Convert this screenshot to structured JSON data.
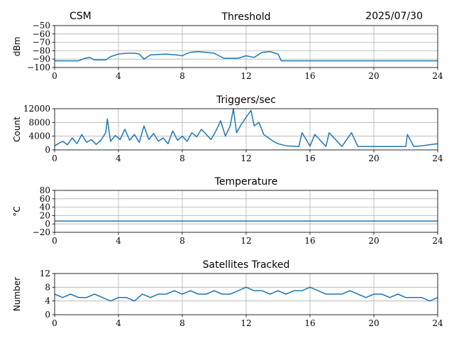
{
  "header": {
    "left_label": "CSM",
    "right_label": "2025/07/30"
  },
  "colors": {
    "series": "#1f77b4",
    "grid": "#b0b0b0",
    "axis": "#000000"
  },
  "chart_data": [
    {
      "id": "threshold",
      "type": "line",
      "title": "Threshold",
      "xlabel": "",
      "ylabel": "dBm",
      "xlim": [
        0,
        24
      ],
      "ylim": [
        -100,
        -50
      ],
      "xticks": [
        0,
        4,
        8,
        12,
        16,
        20,
        24
      ],
      "yticks": [
        -100,
        -90,
        -80,
        -70,
        -60,
        -50
      ],
      "ytick_labels": [
        "−100",
        "−90",
        "−80",
        "−70",
        "−60",
        "−50"
      ],
      "grid": true,
      "x": [
        0,
        1.5,
        1.9,
        2.2,
        2.5,
        3.2,
        3.5,
        4,
        4.5,
        5,
        5.3,
        5.6,
        6,
        7,
        7.6,
        8,
        8.2,
        8.5,
        9,
        9.5,
        10,
        10.3,
        10.6,
        11,
        11.5,
        12,
        12.5,
        13,
        13.5,
        14,
        14.2,
        16,
        20,
        24
      ],
      "y": [
        -92,
        -92,
        -89,
        -88,
        -91,
        -91,
        -87,
        -84,
        -83,
        -83,
        -84,
        -90,
        -85,
        -84,
        -85,
        -86,
        -84,
        -82,
        -81,
        -82,
        -83,
        -86,
        -89,
        -89,
        -89,
        -86,
        -88,
        -82,
        -81,
        -84,
        -92,
        -92,
        -92,
        -92
      ]
    },
    {
      "id": "triggers",
      "type": "line",
      "title": "Triggers/sec",
      "xlabel": "",
      "ylabel": "Count",
      "xlim": [
        0,
        24
      ],
      "ylim": [
        0,
        12000
      ],
      "xticks": [
        0,
        4,
        8,
        12,
        16,
        20,
        24
      ],
      "yticks": [
        0,
        4000,
        8000,
        12000
      ],
      "ytick_labels": [
        "0",
        "4000",
        "8000",
        "12000"
      ],
      "grid": true,
      "x": [
        0,
        0.5,
        0.8,
        1.1,
        1.4,
        1.7,
        2.0,
        2.3,
        2.6,
        2.9,
        3.2,
        3.3,
        3.5,
        3.8,
        4.1,
        4.4,
        4.7,
        5.0,
        5.3,
        5.6,
        5.9,
        6.2,
        6.5,
        6.8,
        7.1,
        7.4,
        7.7,
        8.0,
        8.3,
        8.6,
        8.9,
        9.2,
        9.5,
        9.8,
        10.1,
        10.4,
        10.7,
        11.0,
        11.2,
        11.4,
        11.7,
        12.0,
        12.3,
        12.5,
        12.8,
        13.1,
        13.4,
        13.7,
        14.0,
        14.5,
        15.3,
        15.5,
        16.0,
        16.3,
        17.0,
        17.2,
        18.0,
        18.6,
        19.0,
        20.0,
        21.0,
        22.0,
        22.1,
        22.5,
        23.0,
        23.5,
        24
      ],
      "y": [
        1200,
        2500,
        1500,
        3500,
        1800,
        4500,
        2200,
        3000,
        1600,
        2800,
        5000,
        9000,
        2500,
        4200,
        3000,
        6000,
        2800,
        4500,
        2200,
        7000,
        3000,
        4800,
        2500,
        3500,
        1800,
        5500,
        2800,
        4000,
        2500,
        5000,
        3800,
        6000,
        4500,
        3000,
        5500,
        8500,
        4000,
        7000,
        12000,
        5000,
        7500,
        9500,
        11500,
        7000,
        8000,
        4500,
        3500,
        2500,
        1800,
        1200,
        1000,
        5000,
        1100,
        4500,
        1000,
        5000,
        1000,
        5000,
        1000,
        1000,
        1000,
        1000,
        4500,
        1000,
        1200,
        1500,
        1800
      ]
    },
    {
      "id": "temperature",
      "type": "line",
      "title": "Temperature",
      "xlabel": "",
      "ylabel": "°C",
      "xlim": [
        0,
        24
      ],
      "ylim": [
        -20,
        80
      ],
      "xticks": [
        0,
        4,
        8,
        12,
        16,
        20,
        24
      ],
      "yticks": [
        -20,
        0,
        20,
        40,
        60,
        80
      ],
      "ytick_labels": [
        "−20",
        "0",
        "20",
        "40",
        "60",
        "80"
      ],
      "grid": true,
      "x": [
        0,
        24
      ],
      "y": [
        7,
        7
      ]
    },
    {
      "id": "satellites",
      "type": "line",
      "title": "Satellites Tracked",
      "xlabel": "",
      "ylabel": "Number",
      "xlim": [
        0,
        24
      ],
      "ylim": [
        0,
        12
      ],
      "xticks": [
        0,
        4,
        8,
        12,
        16,
        20,
        24
      ],
      "yticks": [
        0,
        4,
        8,
        12
      ],
      "ytick_labels": [
        "0",
        "4",
        "8",
        "12"
      ],
      "grid": true,
      "x": [
        0,
        0.5,
        1,
        1.5,
        2,
        2.5,
        3,
        3.5,
        4,
        4.5,
        5,
        5.5,
        6,
        6.5,
        7,
        7.5,
        8,
        8.5,
        9,
        9.5,
        10,
        10.5,
        11,
        11.5,
        12,
        12.5,
        13,
        13.5,
        14,
        14.5,
        15,
        15.5,
        16,
        16.5,
        17,
        17.5,
        18,
        18.5,
        19,
        19.5,
        20,
        20.5,
        21,
        21.5,
        22,
        22.5,
        23,
        23.5,
        24
      ],
      "y": [
        6,
        5,
        6,
        5,
        5,
        6,
        5,
        4,
        5,
        5,
        4,
        6,
        5,
        6,
        6,
        7,
        6,
        7,
        6,
        6,
        7,
        6,
        6,
        7,
        8,
        7,
        7,
        6,
        7,
        6,
        7,
        7,
        8,
        7,
        6,
        6,
        6,
        7,
        6,
        5,
        6,
        6,
        5,
        6,
        5,
        5,
        5,
        4,
        5
      ]
    }
  ]
}
